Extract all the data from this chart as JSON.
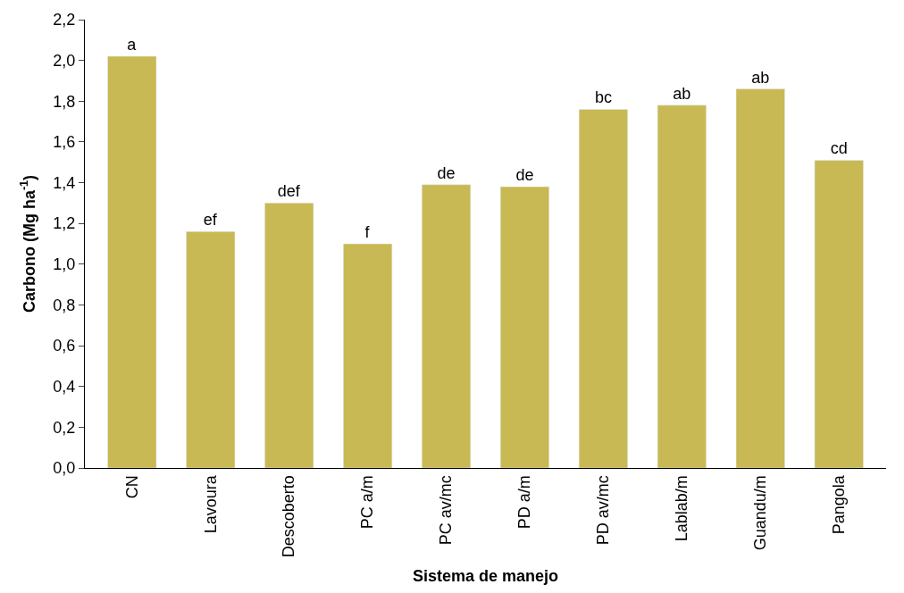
{
  "chart_data": {
    "type": "bar",
    "xlabel": "Sistema de manejo",
    "ylabel": "Carbono (Mg ha$^{-1}$)",
    "categories": [
      "CN",
      "Lavoura",
      "Descoberto",
      "PC a/m",
      "PC av/mc",
      "PD a/m",
      "PD av/mc",
      "Lablab/m",
      "Guandu/m",
      "Pangola"
    ],
    "values": [
      2.02,
      1.16,
      1.3,
      1.1,
      1.39,
      1.38,
      1.76,
      1.78,
      1.86,
      1.51
    ],
    "value_labels": [
      "a",
      "ef",
      "def",
      "f",
      "de",
      "de",
      "bc",
      "ab",
      "ab",
      "cd"
    ],
    "color": "#c8b954",
    "ylim": [
      0,
      2.2
    ],
    "yticks": [
      {
        "value": 0,
        "label": "0,0"
      },
      {
        "value": 0.2,
        "label": "0,2"
      },
      {
        "value": 0.4,
        "label": "0,4"
      },
      {
        "value": 0.6,
        "label": "0,6"
      },
      {
        "value": 0.8,
        "label": "0,8"
      },
      {
        "value": 1.0,
        "label": "1,0"
      },
      {
        "value": 1.2,
        "label": "1,2"
      },
      {
        "value": 1.4,
        "label": "1,4"
      },
      {
        "value": 1.6,
        "label": "1,6"
      },
      {
        "value": 1.8,
        "label": "1,8"
      },
      {
        "value": 2.0,
        "label": "2,0"
      },
      {
        "value": 2.2,
        "label": "2,2"
      }
    ],
    "tick_labels": "xy"
  }
}
